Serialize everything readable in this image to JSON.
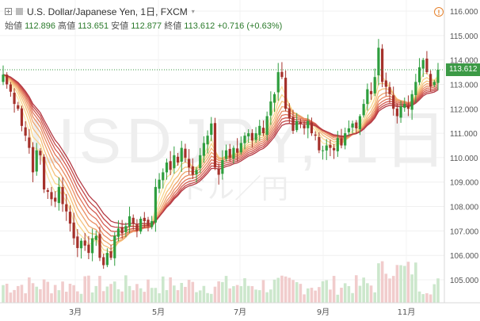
{
  "header": {
    "title": "U.S. Dollar/Japanese Yen, 1日, FXCM",
    "open_label": "始値",
    "open": "112.896",
    "high_label": "高値",
    "high": "113.651",
    "low_label": "安値",
    "low": "112.877",
    "close_label": "終値",
    "close": "113.612",
    "change": "+0.716 (+0.63%)"
  },
  "watermark": {
    "symbol": "USDJPY, 1日",
    "subtitle": "ドル／円"
  },
  "last_price": "113.612",
  "colors": {
    "up": "#2e9e3e",
    "down": "#a5312b",
    "last": "#3c9a46",
    "vol_up": "#cce7cc",
    "vol_down": "#f1cccc"
  },
  "chart_data": {
    "type": "candlestick",
    "title": "U.S. Dollar/Japanese Yen, 1日, FXCM",
    "y_axis": {
      "ticks": [
        "116.000",
        "115.000",
        "114.000",
        "113.000",
        "112.000",
        "111.000",
        "110.000",
        "109.000",
        "108.000",
        "107.000",
        "106.000",
        "105.000"
      ],
      "range": [
        104.5,
        116.4
      ]
    },
    "x_axis": {
      "ticks": [
        "3月",
        "5月",
        "7月",
        "9月",
        "11月"
      ]
    },
    "close_series": [
      113.4,
      113.0,
      112.7,
      112.2,
      112.0,
      111.3,
      110.9,
      110.4,
      109.4,
      110.3,
      110.1,
      108.7,
      108.6,
      108.3,
      108.2,
      108.8,
      108.1,
      107.8,
      107.3,
      106.7,
      106.3,
      106.6,
      106.4,
      106.1,
      106.7,
      106.8,
      105.9,
      105.6,
      106.1,
      105.9,
      106.8,
      107.1,
      106.9,
      107.2,
      107.6,
      107.3,
      107.0,
      107.5,
      107.4,
      107.2,
      107.4,
      108.8,
      109.1,
      109.4,
      109.8,
      109.5,
      110.1,
      109.8,
      110.4,
      110.0,
      109.6,
      109.3,
      109.5,
      110.1,
      110.6,
      110.9,
      111.4,
      109.6,
      109.3,
      109.9,
      110.3,
      110.0,
      110.4,
      110.2,
      110.6,
      110.9,
      111.0,
      110.7,
      111.0,
      111.3,
      111.0,
      111.7,
      112.3,
      112.6,
      113.5,
      113.3,
      112.0,
      111.6,
      111.1,
      111.5,
      111.4,
      111.2,
      111.5,
      111.0,
      110.9,
      110.3,
      110.3,
      110.5,
      110.4,
      110.3,
      110.8,
      110.5,
      111.0,
      111.2,
      111.4,
      111.2,
      111.7,
      112.2,
      112.8,
      112.6,
      113.3,
      114.5,
      113.1,
      112.9,
      112.6,
      112.0,
      111.7,
      112.1,
      112.2,
      112.0,
      112.6,
      113.1,
      113.7,
      114.0,
      113.5,
      112.9,
      113.1,
      113.6
    ],
    "series": [
      {
        "name": "USDJPY"
      }
    ]
  }
}
